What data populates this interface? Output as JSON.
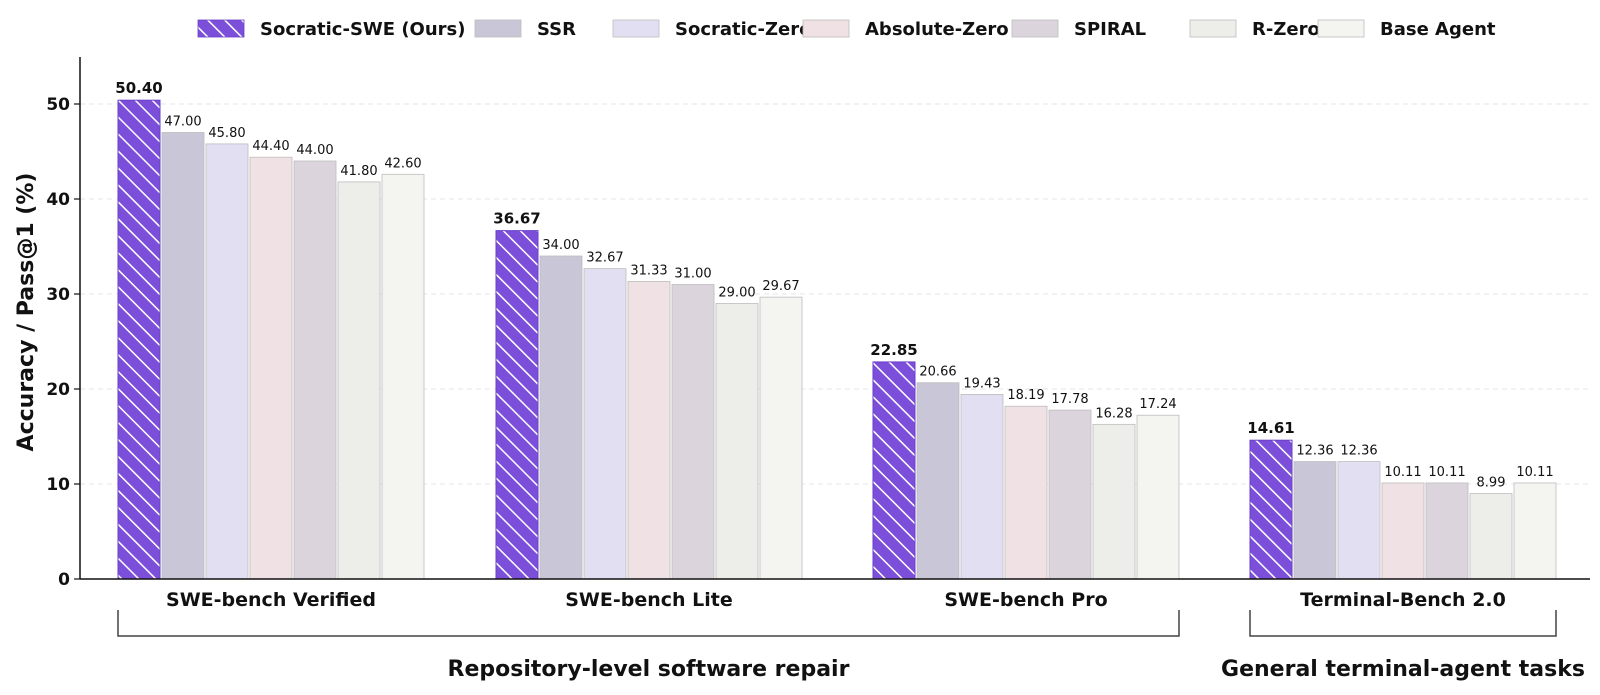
{
  "chart_data": {
    "type": "bar",
    "ylabel": "Accuracy / Pass@1 (%)",
    "ylim": [
      0,
      55
    ],
    "yticks": [
      0,
      10,
      20,
      30,
      40,
      50
    ],
    "grid": true,
    "legend_position": "top",
    "categories": [
      "SWE-bench Verified",
      "SWE-bench Lite",
      "SWE-bench Pro",
      "Terminal-Bench 2.0"
    ],
    "category_groups": [
      {
        "label": "Repository-level software repair",
        "categories": [
          "SWE-bench Verified",
          "SWE-bench Lite",
          "SWE-bench Pro"
        ]
      },
      {
        "label": "General terminal-agent tasks",
        "categories": [
          "Terminal-Bench 2.0"
        ]
      }
    ],
    "series": [
      {
        "name": "Socratic-SWE (Ours)",
        "color": "#7b4fd9",
        "hatched": true,
        "values": [
          50.4,
          36.67,
          22.85,
          14.61
        ],
        "labels": [
          "50.40",
          "36.67",
          "22.85",
          "14.61"
        ]
      },
      {
        "name": "SSR",
        "color": "#c9c6d8",
        "values": [
          47.0,
          34.0,
          20.66,
          12.36
        ],
        "labels": [
          "47.00",
          "34.00",
          "20.66",
          "12.36"
        ]
      },
      {
        "name": "Socratic-Zero",
        "color": "#e2dff2",
        "values": [
          45.8,
          32.67,
          19.43,
          12.36
        ],
        "labels": [
          "45.80",
          "32.67",
          "19.43",
          "12.36"
        ]
      },
      {
        "name": "Absolute-Zero",
        "color": "#f0e1e4",
        "values": [
          44.4,
          31.33,
          18.19,
          10.11
        ],
        "labels": [
          "44.40",
          "31.33",
          "18.19",
          "10.11"
        ]
      },
      {
        "name": "SPIRAL",
        "color": "#dcd4dc",
        "values": [
          44.0,
          31.0,
          17.78,
          10.11
        ],
        "labels": [
          "44.00",
          "31.00",
          "17.78",
          "10.11"
        ]
      },
      {
        "name": "R-Zero",
        "color": "#ededea",
        "values": [
          41.8,
          29.0,
          16.28,
          8.99
        ],
        "labels": [
          "41.80",
          "29.00",
          "16.28",
          "8.99"
        ]
      },
      {
        "name": "Base Agent",
        "color": "#f4f4f0",
        "values": [
          42.6,
          29.67,
          17.24,
          10.11
        ],
        "labels": [
          "42.60",
          "29.67",
          "17.24",
          "10.11"
        ]
      }
    ]
  }
}
